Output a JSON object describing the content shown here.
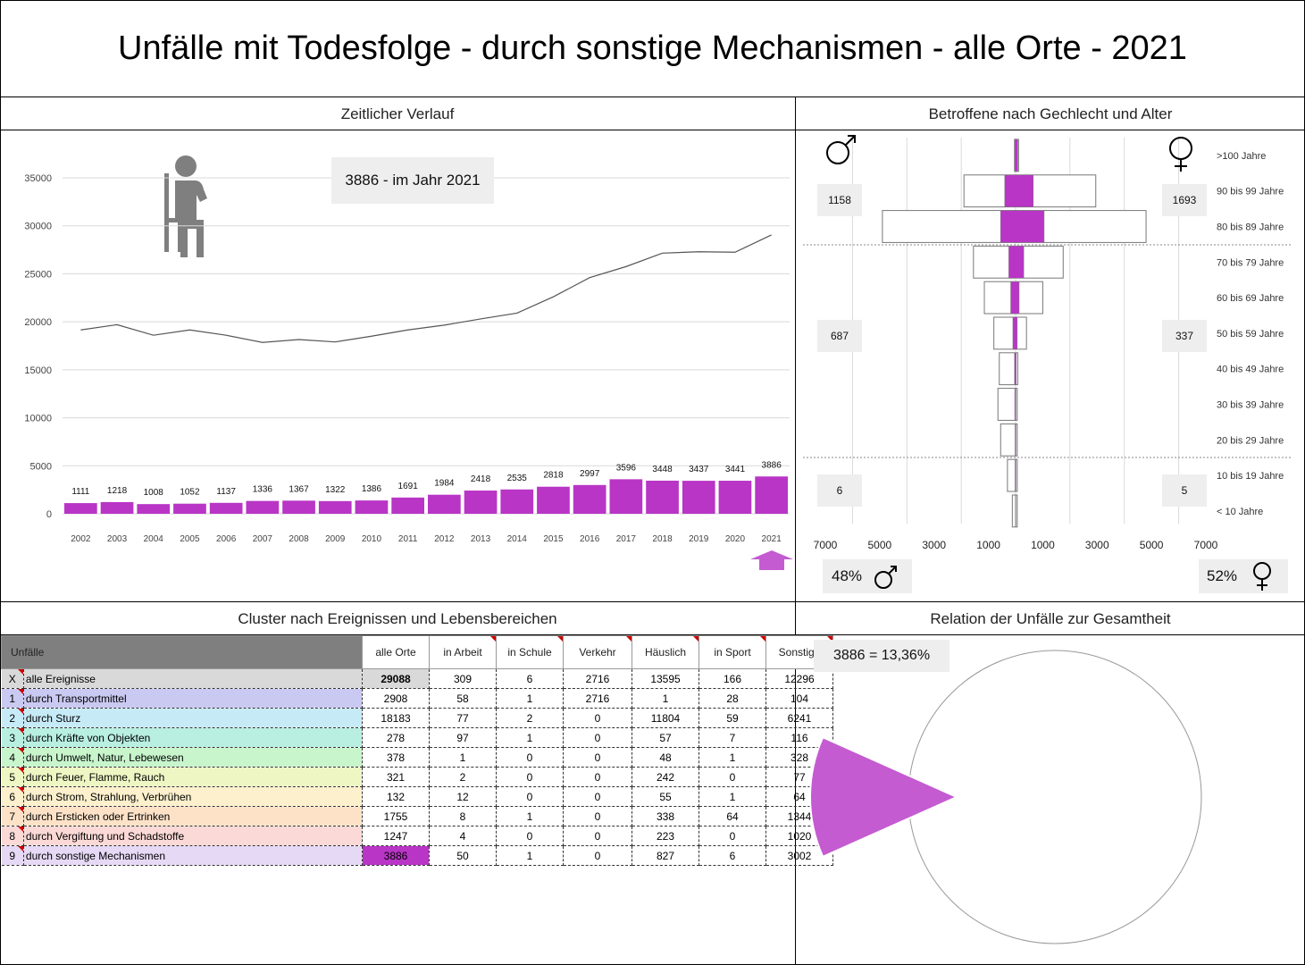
{
  "title": "Unfälle mit Todesfolge - durch sonstige Mechanismen - alle Orte - 2021",
  "panels": {
    "timeline": "Zeitlicher Verlauf",
    "pyramid": "Betroffene nach Gechlecht und Alter",
    "cluster": "Cluster nach Ereignissen und Lebensbereichen",
    "relation": "Relation der Unfälle zur Gesamtheit"
  },
  "colors": {
    "accent": "#b935c6",
    "pie": "#c45bd1",
    "callout_bg": "#eeeeee",
    "header_gray": "#7f7f7f"
  },
  "icons": {
    "sitting_person": "sitting-person-icon",
    "male": "male-symbol-icon",
    "female": "female-symbol-icon",
    "arrow_up": "arrow-up-icon"
  },
  "timeline": {
    "callout": "3886 - im Jahr 2021",
    "yticks": [
      "35000",
      "30000",
      "25000",
      "20000",
      "15000",
      "10000",
      "5000",
      "0"
    ]
  },
  "chart_data": [
    {
      "type": "bar",
      "categories": [
        "2002",
        "2003",
        "2004",
        "2005",
        "2006",
        "2007",
        "2008",
        "2009",
        "2010",
        "2011",
        "2012",
        "2013",
        "2014",
        "2015",
        "2016",
        "2017",
        "2018",
        "2019",
        "2020",
        "2021"
      ],
      "series": [
        {
          "values": [
            1111,
            1218,
            1008,
            1052,
            1137,
            1336,
            1367,
            1322,
            1386,
            1691,
            1984,
            2418,
            2535,
            2818,
            2997,
            3596,
            3448,
            3437,
            3441,
            3886
          ]
        },
        {
          "values": [
            19150,
            19700,
            18600,
            19150,
            18600,
            17850,
            18150,
            17900,
            18500,
            19150,
            19650,
            20300,
            20900,
            22600,
            24600,
            25750,
            27150,
            27300,
            27250,
            29050
          ]
        }
      ],
      "ylim": [
        0,
        35000
      ],
      "highlight": "2021"
    },
    {
      "type": "bar",
      "age_groups": [
        ">100 Jahre",
        "90 bis 99 Jahre",
        "80 bis 89 Jahre",
        "70 bis 79 Jahre",
        "60 bis 69 Jahre",
        "50 bis 59 Jahre",
        "40 bis 49 Jahre",
        "30 bis 39 Jahre",
        "20 bis 29 Jahre",
        "10 bis 19 Jahre",
        "< 10 Jahre"
      ],
      "male_total": [
        40,
        1900,
        4900,
        1550,
        1150,
        800,
        600,
        650,
        550,
        300,
        120
      ],
      "female_total": [
        110,
        2950,
        4800,
        1750,
        1000,
        400,
        80,
        60,
        60,
        60,
        60
      ],
      "male_selected": [
        30,
        400,
        550,
        250,
        180,
        100,
        40,
        30,
        20,
        20,
        10
      ],
      "female_selected": [
        80,
        650,
        1050,
        300,
        130,
        60,
        20,
        10,
        10,
        10,
        10
      ],
      "xticks": [
        "7000",
        "5000",
        "3000",
        "1000",
        "1000",
        "3000",
        "5000",
        "7000"
      ],
      "xlim": [
        -7000,
        7000
      ],
      "group_totals": {
        "male": [
          "1158",
          "687",
          "6"
        ],
        "female": [
          "1693",
          "337",
          "5"
        ]
      },
      "share": {
        "male": "48%",
        "female": "52%"
      }
    },
    {
      "type": "pie",
      "values": [
        3886,
        25202
      ],
      "callout": "3886 =  13,36%"
    }
  ],
  "cluster": {
    "headers": [
      "Unfälle",
      "alle Orte",
      "in Arbeit",
      "in Schule",
      "Verkehr",
      "Häuslich",
      "in Sport",
      "Sonstige"
    ],
    "rows": [
      {
        "id": "X",
        "label": "alle Ereignisse",
        "vals": [
          "29088",
          "309",
          "6",
          "2716",
          "13595",
          "166",
          "12296"
        ],
        "color": "#d9d9d9"
      },
      {
        "id": "1",
        "label": "durch Transportmittel",
        "vals": [
          "2908",
          "58",
          "1",
          "2716",
          "1",
          "28",
          "104"
        ],
        "color": "#c9c9f2"
      },
      {
        "id": "2",
        "label": "durch Sturz",
        "vals": [
          "18183",
          "77",
          "2",
          "0",
          "11804",
          "59",
          "6241"
        ],
        "color": "#c6ebf7"
      },
      {
        "id": "3",
        "label": "durch Kräfte von Objekten",
        "vals": [
          "278",
          "97",
          "1",
          "0",
          "57",
          "7",
          "116"
        ],
        "color": "#b8efe0"
      },
      {
        "id": "4",
        "label": "durch Umwelt, Natur, Lebewesen",
        "vals": [
          "378",
          "1",
          "0",
          "0",
          "48",
          "1",
          "328"
        ],
        "color": "#c8f5cc"
      },
      {
        "id": "5",
        "label": "durch Feuer, Flamme, Rauch",
        "vals": [
          "321",
          "2",
          "0",
          "0",
          "242",
          "0",
          "77"
        ],
        "color": "#eef7c4"
      },
      {
        "id": "6",
        "label": "durch Strom, Strahlung, Verbrühen",
        "vals": [
          "132",
          "12",
          "0",
          "0",
          "55",
          "1",
          "64"
        ],
        "color": "#fdf0cc"
      },
      {
        "id": "7",
        "label": "durch Ersticken oder Ertrinken",
        "vals": [
          "1755",
          "8",
          "1",
          "0",
          "338",
          "64",
          "1344"
        ],
        "color": "#fde2c8"
      },
      {
        "id": "8",
        "label": "durch Vergiftung und Schadstoffe",
        "vals": [
          "1247",
          "4",
          "0",
          "0",
          "223",
          "0",
          "1020"
        ],
        "color": "#fbd9d6"
      },
      {
        "id": "9",
        "label": "durch sonstige Mechanismen",
        "vals": [
          "3886",
          "50",
          "1",
          "0",
          "827",
          "6",
          "3002"
        ],
        "color": "#e6d9f5"
      }
    ]
  }
}
